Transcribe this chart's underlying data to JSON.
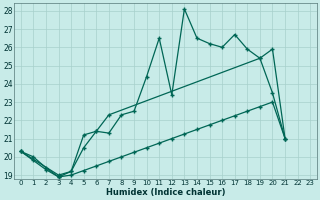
{
  "xlabel": "Humidex (Indice chaleur)",
  "bg_color": "#c8ebe8",
  "grid_color": "#a8d0cc",
  "line_color": "#006655",
  "ylim": [
    18.8,
    28.4
  ],
  "yticks": [
    19,
    20,
    21,
    22,
    23,
    24,
    25,
    26,
    27,
    28
  ],
  "xlim": [
    -0.5,
    23.5
  ],
  "xticks": [
    0,
    1,
    2,
    3,
    4,
    5,
    6,
    7,
    8,
    9,
    10,
    11,
    12,
    13,
    14,
    15,
    16,
    17,
    18,
    19,
    20,
    21,
    22,
    23
  ],
  "line1_x": [
    0,
    1,
    2,
    3,
    4,
    5,
    6,
    7,
    8,
    9,
    10,
    11,
    12,
    13,
    14,
    15,
    16,
    17,
    18,
    19,
    20,
    21
  ],
  "line1_y": [
    20.3,
    20.0,
    19.4,
    18.9,
    19.2,
    21.2,
    21.4,
    21.3,
    22.3,
    22.5,
    24.4,
    26.5,
    23.4,
    28.1,
    26.5,
    26.2,
    26.0,
    26.7,
    25.9,
    25.4,
    23.5,
    21.0
  ],
  "line2_x": [
    0,
    3,
    4,
    5,
    6,
    7,
    19,
    20,
    21
  ],
  "line2_y": [
    20.3,
    19.0,
    19.2,
    20.5,
    21.4,
    22.3,
    25.4,
    25.9,
    21.0
  ],
  "line3_x": [
    0,
    1,
    2,
    3,
    4,
    5,
    6,
    7,
    8,
    9,
    10,
    11,
    12,
    13,
    14,
    15,
    16,
    17,
    18,
    19,
    20,
    21
  ],
  "line3_y": [
    20.3,
    19.8,
    19.3,
    18.9,
    19.0,
    19.25,
    19.5,
    19.75,
    20.0,
    20.25,
    20.5,
    20.75,
    21.0,
    21.25,
    21.5,
    21.75,
    22.0,
    22.25,
    22.5,
    22.75,
    23.0,
    21.0
  ]
}
